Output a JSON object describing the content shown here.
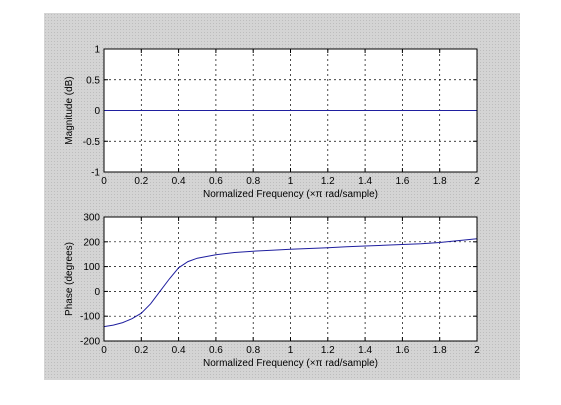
{
  "colors": {
    "figure_bg": "#d4d4d4",
    "axes_bg": "#ffffff",
    "line": "#1f1f9f",
    "grid": "#000000"
  },
  "chart_data": [
    {
      "type": "line",
      "id": "magnitude",
      "xlabel": "Normalized Frequency  (×π rad/sample)",
      "ylabel": "Magnitude (dB)",
      "xlim": [
        0,
        2
      ],
      "ylim": [
        -1,
        1
      ],
      "xticks": [
        "0",
        "0.2",
        "0.4",
        "0.6",
        "0.8",
        "1",
        "1.2",
        "1.4",
        "1.6",
        "1.8",
        "2"
      ],
      "yticks": [
        "1",
        "0.5",
        "0",
        "-0.5",
        "-1"
      ],
      "grid": true,
      "series": [
        {
          "x": [
            0,
            2
          ],
          "y": [
            0,
            0
          ]
        }
      ]
    },
    {
      "type": "line",
      "id": "phase",
      "xlabel": "Normalized Frequency  (×π rad/sample)",
      "ylabel": "Phase (degrees)",
      "xlim": [
        0,
        2
      ],
      "ylim": [
        -200,
        300
      ],
      "xticks": [
        "0",
        "0.2",
        "0.4",
        "0.6",
        "0.8",
        "1",
        "1.2",
        "1.4",
        "1.6",
        "1.8",
        "2"
      ],
      "yticks": [
        "300",
        "200",
        "100",
        "0",
        "-100",
        "-200"
      ],
      "grid": true,
      "series": [
        {
          "x": [
            0,
            0.05,
            0.1,
            0.15,
            0.2,
            0.25,
            0.3,
            0.35,
            0.4,
            0.45,
            0.5,
            0.6,
            0.7,
            0.8,
            0.9,
            1.0,
            1.1,
            1.2,
            1.3,
            1.4,
            1.5,
            1.6,
            1.7,
            1.8,
            1.9,
            2.0
          ],
          "y": [
            -142,
            -136,
            -126,
            -110,
            -88,
            -50,
            0,
            50,
            95,
            120,
            134,
            148,
            157,
            162,
            166,
            170,
            173,
            176,
            180,
            183,
            186,
            189,
            192,
            197,
            205,
            212
          ]
        }
      ]
    }
  ]
}
